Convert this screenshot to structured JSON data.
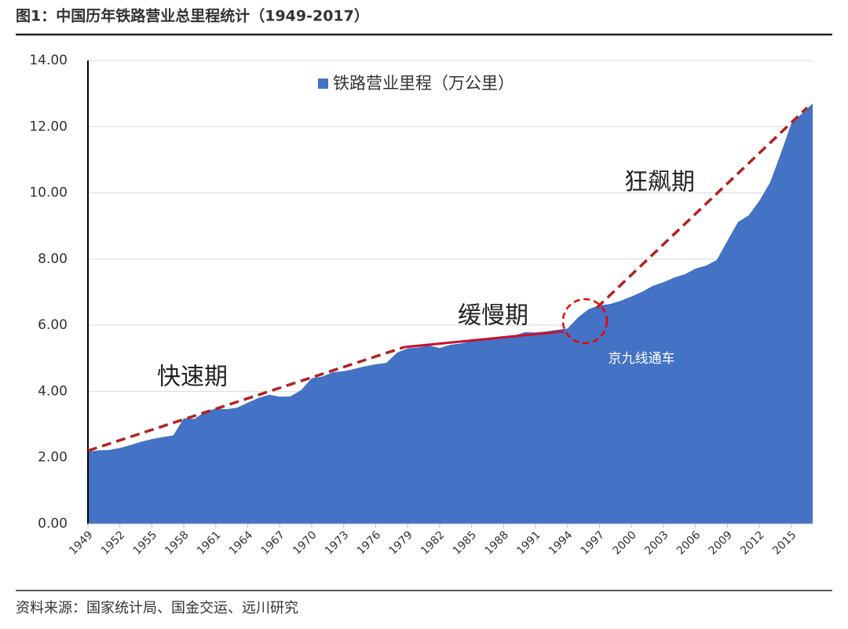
{
  "chart_data": {
    "type": "area",
    "title": "图1：中国历年铁路营业总里程统计（1949-2017）",
    "source": "资料来源：国家统计局、国金交运、远川研究",
    "annotations": [
      "快速期",
      "缓慢期",
      "狂飙期",
      "京九线通车"
    ],
    "x": [
      1949,
      1950,
      1951,
      1952,
      1953,
      1954,
      1955,
      1956,
      1957,
      1958,
      1959,
      1960,
      1961,
      1962,
      1963,
      1964,
      1965,
      1966,
      1967,
      1968,
      1969,
      1970,
      1971,
      1972,
      1973,
      1974,
      1975,
      1976,
      1977,
      1978,
      1979,
      1980,
      1981,
      1982,
      1983,
      1984,
      1985,
      1986,
      1987,
      1988,
      1989,
      1990,
      1991,
      1992,
      1993,
      1994,
      1995,
      1996,
      1997,
      1998,
      1999,
      2000,
      2001,
      2002,
      2003,
      2004,
      2005,
      2006,
      2007,
      2008,
      2009,
      2010,
      2011,
      2012,
      2013,
      2014,
      2015,
      2016,
      2017
    ],
    "series": [
      {
        "name": "铁路营业里程（万公里）",
        "color": "#4472c4",
        "values": [
          2.18,
          2.22,
          2.23,
          2.29,
          2.38,
          2.48,
          2.56,
          2.62,
          2.67,
          3.19,
          3.17,
          3.39,
          3.48,
          3.46,
          3.51,
          3.66,
          3.8,
          3.9,
          3.84,
          3.85,
          4.04,
          4.4,
          4.45,
          4.58,
          4.61,
          4.68,
          4.76,
          4.82,
          4.86,
          5.17,
          5.3,
          5.33,
          5.39,
          5.31,
          5.41,
          5.45,
          5.52,
          5.58,
          5.58,
          5.6,
          5.69,
          5.79,
          5.78,
          5.81,
          5.86,
          5.9,
          6.24,
          6.49,
          6.6,
          6.64,
          6.74,
          6.87,
          7.01,
          7.19,
          7.3,
          7.44,
          7.54,
          7.71,
          7.8,
          7.97,
          8.55,
          9.12,
          9.32,
          9.76,
          10.31,
          11.18,
          12.1,
          12.4,
          12.7
        ]
      }
    ],
    "xlim": [
      1949,
      2017
    ],
    "xticks": [
      1949,
      1952,
      1955,
      1958,
      1961,
      1964,
      1967,
      1970,
      1973,
      1976,
      1979,
      1982,
      1985,
      1988,
      1991,
      1994,
      1997,
      2000,
      2003,
      2006,
      2009,
      2012,
      2015
    ],
    "ylim": [
      0,
      14
    ],
    "yticks": [
      {
        "value": 0,
        "label": "0.00"
      },
      {
        "value": 2,
        "label": "2.00"
      },
      {
        "value": 4,
        "label": "4.00"
      },
      {
        "value": 6,
        "label": "6.00"
      },
      {
        "value": 8,
        "label": "8.00"
      },
      {
        "value": 10,
        "label": "10.00"
      },
      {
        "value": 12,
        "label": "12.00"
      },
      {
        "value": 14,
        "label": "14.00"
      }
    ],
    "grid": true
  }
}
